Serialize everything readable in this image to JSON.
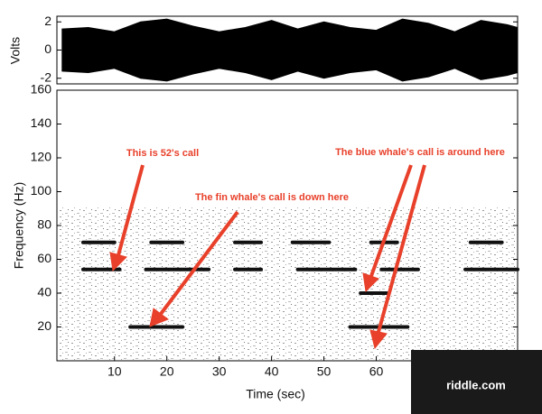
{
  "chart_data": [
    {
      "type": "envelope",
      "ylabel": "Volts",
      "xlim": [
        -1,
        87
      ],
      "ylim": [
        -2.4,
        2.4
      ],
      "yticks": [
        -2,
        0,
        2
      ],
      "color": "#000000",
      "x": [
        0,
        5,
        10,
        15,
        20,
        25,
        30,
        35,
        40,
        45,
        50,
        55,
        60,
        65,
        70,
        75,
        80,
        85,
        87
      ],
      "values": [
        1.5,
        1.6,
        1.3,
        2.0,
        2.2,
        1.7,
        1.3,
        1.6,
        2.1,
        1.5,
        2.0,
        1.6,
        1.4,
        2.2,
        1.9,
        1.3,
        2.1,
        1.8,
        1.6
      ]
    },
    {
      "type": "spectrogram",
      "ylabel": "Frequency (Hz)",
      "xlabel": "Time (sec)",
      "xlim": [
        -1,
        87
      ],
      "ylim": [
        0,
        160
      ],
      "xticks": [
        10,
        20,
        30,
        40,
        50,
        60
      ],
      "yticks": [
        20,
        40,
        60,
        80,
        100,
        120,
        140,
        160
      ],
      "color": "#111111",
      "segments": [
        {
          "x": [
            4,
            10
          ],
          "y": 70
        },
        {
          "x": [
            17,
            23
          ],
          "y": 70
        },
        {
          "x": [
            33,
            38
          ],
          "y": 70
        },
        {
          "x": [
            44,
            51
          ],
          "y": 70
        },
        {
          "x": [
            59,
            64
          ],
          "y": 70
        },
        {
          "x": [
            78,
            84
          ],
          "y": 70
        },
        {
          "x": [
            4,
            11
          ],
          "y": 54
        },
        {
          "x": [
            16,
            28
          ],
          "y": 54
        },
        {
          "x": [
            33,
            38
          ],
          "y": 54
        },
        {
          "x": [
            45,
            56
          ],
          "y": 54
        },
        {
          "x": [
            61,
            68
          ],
          "y": 54
        },
        {
          "x": [
            77,
            87
          ],
          "y": 54
        },
        {
          "x": [
            13,
            23
          ],
          "y": 20
        },
        {
          "x": [
            55,
            66
          ],
          "y": 20
        },
        {
          "x": [
            57,
            62
          ],
          "y": 40
        }
      ],
      "annotations": [
        "This is 52's call",
        "The fin whale's call is down here",
        "The blue whale's call is around here"
      ],
      "annotation_color": "#e8402a"
    }
  ],
  "watermark": "riddle.com"
}
